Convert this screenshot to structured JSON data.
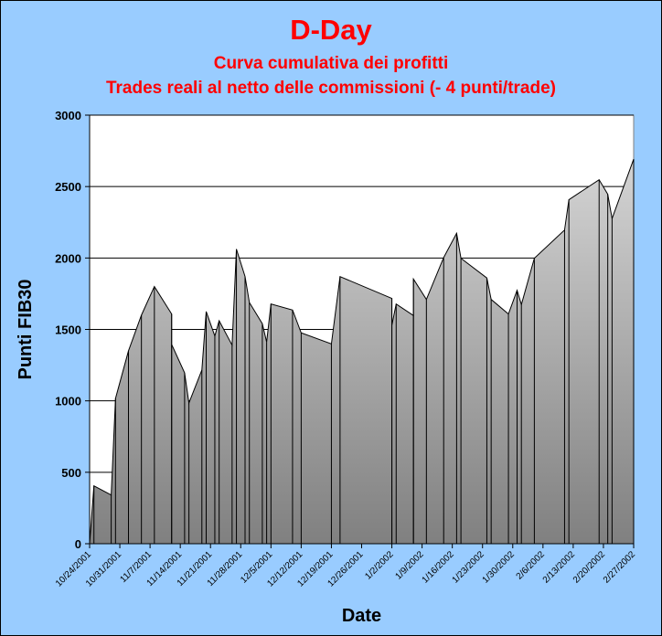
{
  "chart_data": {
    "type": "area",
    "title": "D-Day",
    "subtitle": [
      "Curva cumulativa dei profitti",
      "Trades reali al netto delle commissioni (- 4 punti/trade)"
    ],
    "xlabel": "Date",
    "ylabel": "Punti FIB30",
    "ylim": [
      0,
      3000
    ],
    "yticks": [
      0,
      500,
      1000,
      1500,
      2000,
      2500,
      3000
    ],
    "xlim": [
      "2001-10-24",
      "2002-02-27"
    ],
    "xticks": [
      "10/24/2001",
      "10/31/2001",
      "11/7/2001",
      "11/14/2001",
      "11/21/2001",
      "11/28/2001",
      "12/5/2001",
      "12/12/2001",
      "12/19/2001",
      "12/26/2001",
      "1/2/2002",
      "1/9/2002",
      "1/16/2002",
      "1/23/2002",
      "1/30/2002",
      "2/6/2002",
      "2/13/2002",
      "2/20/2002",
      "2/27/2002"
    ],
    "grid": "horizontal major",
    "legend": "none",
    "colors": {
      "background": "#99ccff",
      "plot": "#ffffff",
      "fill_top": "#d4d4d4",
      "fill_bottom": "#808080",
      "title": "#ff0000"
    },
    "points": [
      [
        "2001-10-24",
        0
      ],
      [
        "2001-10-25",
        405
      ],
      [
        "2001-10-29",
        341
      ],
      [
        "2001-10-30",
        1017
      ],
      [
        "2001-11-02",
        1350
      ],
      [
        "2001-11-05",
        1600
      ],
      [
        "2001-11-08",
        1800
      ],
      [
        "2001-11-12",
        1608
      ],
      [
        "2001-11-12",
        1395
      ],
      [
        "2001-11-15",
        1196
      ],
      [
        "2001-11-16",
        985
      ],
      [
        "2001-11-19",
        1216
      ],
      [
        "2001-11-20",
        1625
      ],
      [
        "2001-11-22",
        1454
      ],
      [
        "2001-11-23",
        1561
      ],
      [
        "2001-11-26",
        1390
      ],
      [
        "2001-11-27",
        2062
      ],
      [
        "2001-11-29",
        1870
      ],
      [
        "2001-11-30",
        1689
      ],
      [
        "2001-12-03",
        1540
      ],
      [
        "2001-12-04",
        1412
      ],
      [
        "2001-12-05",
        1678
      ],
      [
        "2001-12-10",
        1636
      ],
      [
        "2001-12-12",
        1476
      ],
      [
        "2001-12-19",
        1399
      ],
      [
        "2001-12-21",
        1870
      ],
      [
        "2002-01-02",
        1717
      ],
      [
        "2002-01-02",
        1529
      ],
      [
        "2002-01-03",
        1678
      ],
      [
        "2002-01-07",
        1597
      ],
      [
        "2002-01-07",
        1853
      ],
      [
        "2002-01-10",
        1710
      ],
      [
        "2002-01-14",
        2003
      ],
      [
        "2002-01-17",
        2173
      ],
      [
        "2002-01-18",
        1998
      ],
      [
        "2002-01-24",
        1860
      ],
      [
        "2002-01-25",
        1710
      ],
      [
        "2002-01-29",
        1608
      ],
      [
        "2002-01-31",
        1774
      ],
      [
        "2002-02-01",
        1674
      ],
      [
        "2002-02-04",
        1998
      ],
      [
        "2002-02-11",
        2196
      ],
      [
        "2002-02-12",
        2408
      ],
      [
        "2002-02-19",
        2548
      ],
      [
        "2002-02-21",
        2446
      ],
      [
        "2002-02-22",
        2276
      ],
      [
        "2002-02-27",
        2692
      ]
    ]
  }
}
